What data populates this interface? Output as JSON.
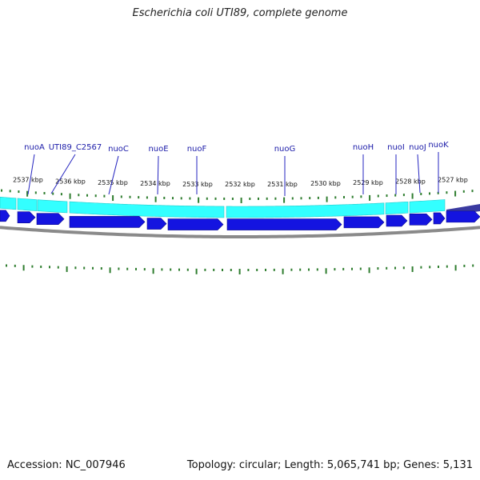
{
  "title": "Escherichia coli UTI89, complete genome",
  "accession": "Accession: NC_007946",
  "summary": "Topology: circular; Length: 5,065,741 bp; Genes: 5,131",
  "colors": {
    "background": "#ffffff",
    "gene_label": "#1a1aa8",
    "tick": "#2e7d2e",
    "cds_track": "#1414e0",
    "gene_track": "#33ffff",
    "backbone": "#8a8a8a"
  },
  "gene_labels": [
    {
      "name": "nuoA"
    },
    {
      "name": "UTI89_C2567"
    },
    {
      "name": "nuoC"
    },
    {
      "name": "nuoE"
    },
    {
      "name": "nuoF"
    },
    {
      "name": "nuoG"
    },
    {
      "name": "nuoH"
    },
    {
      "name": "nuoI"
    },
    {
      "name": "nuoJ"
    },
    {
      "name": "nuoK"
    }
  ],
  "kbp_labels": [
    "2537 kbp",
    "2536 kbp",
    "2535 kbp",
    "2534 kbp",
    "2533 kbp",
    "2532 kbp",
    "2531 kbp",
    "2530 kbp",
    "2529 kbp",
    "2528 kbp",
    "2527 kbp"
  ]
}
